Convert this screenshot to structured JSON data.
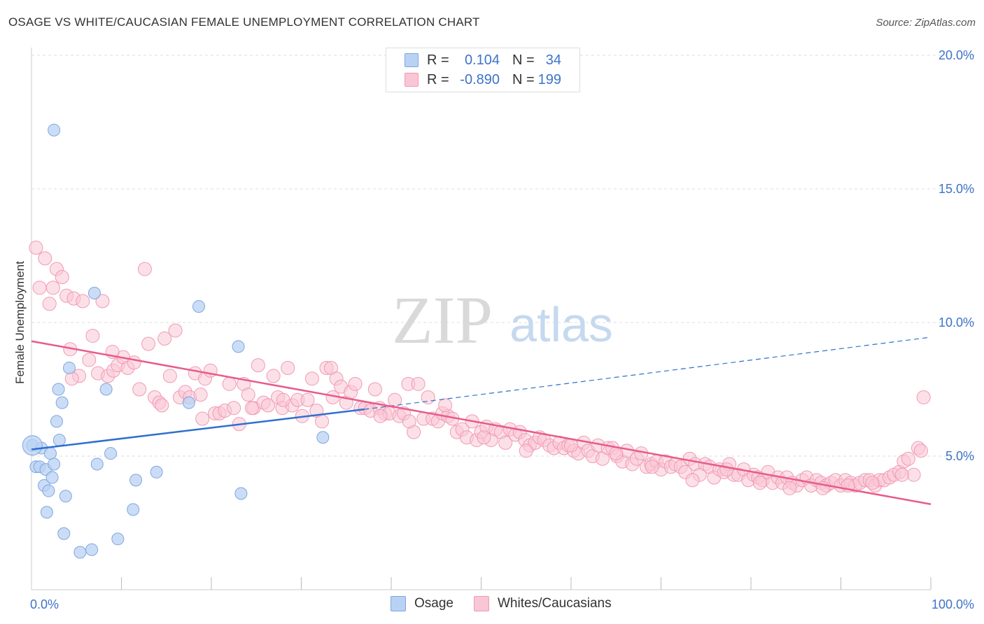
{
  "header": {
    "title": "OSAGE VS WHITE/CAUCASIAN FEMALE UNEMPLOYMENT CORRELATION CHART",
    "source": "Source: ZipAtlas.com"
  },
  "watermark": {
    "zip": "ZIP",
    "atlas": "atlas"
  },
  "legend_top": {
    "rows": [
      {
        "r_label": "R =",
        "r_value": "0.104",
        "n_label": "N =",
        "n_value": "34"
      },
      {
        "r_label": "R =",
        "r_value": "-0.890",
        "n_label": "N =",
        "n_value": "199"
      }
    ]
  },
  "legend_bottom": {
    "items": [
      "Osage",
      "Whites/Caucasians"
    ]
  },
  "colors": {
    "osage_fill": "#b9d2f3",
    "osage_stroke": "#7ea6e0",
    "osage_line": "#2f6fcf",
    "white_fill": "#f9c6d5",
    "white_stroke": "#f09ab5",
    "white_line": "#e85b8a",
    "grid": "#dddddd",
    "tick_label": "#3e73c8"
  },
  "chart_data": {
    "type": "scatter",
    "title": "OSAGE VS WHITE/CAUCASIAN FEMALE UNEMPLOYMENT CORRELATION CHART",
    "xlabel": "",
    "ylabel": "Female Unemployment",
    "xlim": [
      0,
      100
    ],
    "ylim": [
      0,
      20
    ],
    "x_tick_labels": [
      "0.0%",
      "100.0%"
    ],
    "y_ticks": [
      5,
      10,
      15,
      20
    ],
    "y_tick_labels": [
      "5.0%",
      "10.0%",
      "15.0%",
      "20.0%"
    ],
    "grid": true,
    "legend": "bottom",
    "series": [
      {
        "name": "Osage",
        "n": 34,
        "r": 0.104,
        "trend": {
          "x": [
            0,
            37,
            100
          ],
          "y": [
            5.25,
            6.75,
            9.45
          ],
          "solid_until": 37
        },
        "points": [
          [
            0.1,
            5.4
          ],
          [
            0.5,
            4.6
          ],
          [
            1.1,
            5.3
          ],
          [
            0.9,
            4.6
          ],
          [
            1.4,
            3.9
          ],
          [
            1.6,
            4.5
          ],
          [
            1.9,
            3.7
          ],
          [
            2.1,
            5.1
          ],
          [
            2.3,
            4.2
          ],
          [
            2.5,
            4.7
          ],
          [
            1.7,
            2.9
          ],
          [
            2.8,
            6.3
          ],
          [
            3.0,
            7.5
          ],
          [
            3.1,
            5.6
          ],
          [
            2.5,
            17.2
          ],
          [
            3.8,
            3.5
          ],
          [
            3.4,
            7.0
          ],
          [
            3.6,
            2.1
          ],
          [
            4.2,
            8.3
          ],
          [
            5.4,
            1.4
          ],
          [
            6.7,
            1.5
          ],
          [
            7.0,
            11.1
          ],
          [
            7.3,
            4.7
          ],
          [
            8.3,
            7.5
          ],
          [
            8.8,
            5.1
          ],
          [
            9.6,
            1.9
          ],
          [
            11.6,
            4.1
          ],
          [
            11.3,
            3.0
          ],
          [
            13.9,
            4.4
          ],
          [
            17.5,
            7.0
          ],
          [
            18.6,
            10.6
          ],
          [
            23.0,
            9.1
          ],
          [
            23.3,
            3.6
          ],
          [
            32.4,
            5.7
          ]
        ]
      },
      {
        "name": "Whites/Caucasians",
        "n": 199,
        "r": -0.89,
        "trend": {
          "x": [
            0,
            100
          ],
          "y": [
            9.3,
            3.2
          ]
        },
        "points": [
          [
            0.5,
            12.8
          ],
          [
            0.9,
            11.3
          ],
          [
            1.5,
            12.4
          ],
          [
            2.0,
            10.7
          ],
          [
            2.4,
            11.3
          ],
          [
            2.8,
            12.0
          ],
          [
            3.4,
            11.7
          ],
          [
            3.9,
            11.0
          ],
          [
            4.3,
            9.0
          ],
          [
            4.7,
            10.9
          ],
          [
            5.3,
            8.0
          ],
          [
            5.7,
            10.8
          ],
          [
            6.4,
            8.6
          ],
          [
            6.8,
            9.5
          ],
          [
            7.4,
            8.1
          ],
          [
            7.9,
            10.8
          ],
          [
            8.5,
            8.0
          ],
          [
            9.1,
            8.2
          ],
          [
            9.6,
            8.4
          ],
          [
            10.2,
            8.7
          ],
          [
            10.7,
            8.3
          ],
          [
            11.4,
            8.5
          ],
          [
            12.0,
            7.5
          ],
          [
            12.6,
            12.0
          ],
          [
            13.0,
            9.2
          ],
          [
            13.7,
            7.2
          ],
          [
            14.2,
            7.0
          ],
          [
            14.8,
            9.4
          ],
          [
            15.4,
            8.0
          ],
          [
            16.0,
            9.7
          ],
          [
            16.5,
            7.2
          ],
          [
            17.1,
            7.4
          ],
          [
            17.6,
            7.2
          ],
          [
            18.2,
            8.1
          ],
          [
            18.8,
            7.3
          ],
          [
            19.3,
            7.9
          ],
          [
            19.9,
            8.2
          ],
          [
            20.4,
            6.6
          ],
          [
            20.9,
            6.6
          ],
          [
            21.5,
            6.7
          ],
          [
            22.0,
            7.7
          ],
          [
            22.5,
            6.8
          ],
          [
            23.1,
            6.2
          ],
          [
            23.6,
            7.7
          ],
          [
            24.1,
            7.3
          ],
          [
            24.7,
            6.8
          ],
          [
            25.2,
            8.4
          ],
          [
            25.8,
            7.0
          ],
          [
            26.3,
            6.9
          ],
          [
            26.9,
            8.0
          ],
          [
            27.4,
            7.2
          ],
          [
            27.9,
            6.8
          ],
          [
            28.5,
            8.3
          ],
          [
            29.0,
            6.9
          ],
          [
            29.6,
            7.1
          ],
          [
            30.1,
            6.5
          ],
          [
            30.7,
            7.1
          ],
          [
            31.2,
            7.9
          ],
          [
            31.7,
            6.7
          ],
          [
            32.3,
            6.3
          ],
          [
            32.8,
            8.3
          ],
          [
            33.3,
            8.3
          ],
          [
            33.9,
            7.9
          ],
          [
            34.4,
            7.6
          ],
          [
            35.0,
            7.0
          ],
          [
            35.5,
            7.4
          ],
          [
            36.0,
            7.7
          ],
          [
            36.6,
            6.8
          ],
          [
            37.1,
            6.8
          ],
          [
            37.7,
            6.7
          ],
          [
            38.2,
            7.5
          ],
          [
            38.7,
            6.8
          ],
          [
            39.3,
            6.6
          ],
          [
            39.8,
            6.6
          ],
          [
            40.4,
            7.1
          ],
          [
            40.9,
            6.5
          ],
          [
            41.4,
            6.6
          ],
          [
            41.9,
            7.7
          ],
          [
            42.5,
            5.9
          ],
          [
            43.0,
            7.7
          ],
          [
            43.6,
            6.4
          ],
          [
            44.1,
            7.2
          ],
          [
            44.6,
            6.4
          ],
          [
            45.2,
            6.3
          ],
          [
            45.7,
            6.6
          ],
          [
            46.3,
            6.5
          ],
          [
            46.8,
            6.4
          ],
          [
            47.3,
            5.9
          ],
          [
            47.9,
            6.0
          ],
          [
            48.4,
            5.7
          ],
          [
            49.0,
            6.3
          ],
          [
            49.5,
            5.6
          ],
          [
            50.0,
            5.9
          ],
          [
            50.6,
            6.1
          ],
          [
            51.1,
            5.6
          ],
          [
            51.6,
            6.0
          ],
          [
            52.2,
            5.9
          ],
          [
            52.7,
            5.5
          ],
          [
            53.2,
            6.0
          ],
          [
            53.8,
            5.8
          ],
          [
            54.3,
            5.9
          ],
          [
            54.9,
            5.6
          ],
          [
            55.4,
            5.4
          ],
          [
            56.0,
            5.5
          ],
          [
            56.5,
            5.7
          ],
          [
            57.0,
            5.6
          ],
          [
            57.6,
            5.4
          ],
          [
            58.1,
            5.3
          ],
          [
            58.7,
            5.5
          ],
          [
            59.2,
            5.3
          ],
          [
            59.7,
            5.4
          ],
          [
            60.3,
            5.2
          ],
          [
            60.8,
            5.1
          ],
          [
            61.4,
            5.5
          ],
          [
            61.9,
            5.2
          ],
          [
            62.4,
            5.0
          ],
          [
            63.0,
            5.4
          ],
          [
            63.5,
            4.9
          ],
          [
            64.1,
            5.3
          ],
          [
            64.6,
            5.3
          ],
          [
            65.1,
            5.0
          ],
          [
            65.7,
            4.8
          ],
          [
            66.2,
            5.2
          ],
          [
            66.8,
            4.7
          ],
          [
            67.3,
            4.9
          ],
          [
            67.8,
            5.1
          ],
          [
            68.4,
            4.6
          ],
          [
            68.9,
            4.7
          ],
          [
            69.5,
            4.8
          ],
          [
            70.0,
            4.5
          ],
          [
            70.5,
            4.8
          ],
          [
            71.1,
            4.6
          ],
          [
            71.6,
            4.7
          ],
          [
            72.2,
            4.6
          ],
          [
            72.7,
            4.4
          ],
          [
            73.2,
            4.9
          ],
          [
            73.8,
            4.7
          ],
          [
            74.3,
            4.3
          ],
          [
            74.9,
            4.7
          ],
          [
            75.4,
            4.6
          ],
          [
            75.9,
            4.2
          ],
          [
            76.5,
            4.5
          ],
          [
            77.0,
            4.4
          ],
          [
            77.6,
            4.7
          ],
          [
            78.1,
            4.3
          ],
          [
            78.6,
            4.3
          ],
          [
            79.2,
            4.5
          ],
          [
            79.7,
            4.1
          ],
          [
            80.3,
            4.3
          ],
          [
            80.8,
            4.2
          ],
          [
            81.3,
            4.1
          ],
          [
            81.9,
            4.4
          ],
          [
            82.4,
            4.0
          ],
          [
            83.0,
            4.2
          ],
          [
            83.5,
            4.0
          ],
          [
            84.0,
            4.2
          ],
          [
            84.6,
            4.0
          ],
          [
            85.1,
            3.9
          ],
          [
            85.7,
            4.1
          ],
          [
            86.2,
            4.2
          ],
          [
            86.7,
            3.9
          ],
          [
            87.3,
            4.1
          ],
          [
            87.8,
            4.0
          ],
          [
            88.4,
            3.9
          ],
          [
            88.9,
            4.0
          ],
          [
            89.4,
            4.1
          ],
          [
            90.0,
            3.9
          ],
          [
            90.5,
            4.1
          ],
          [
            91.1,
            4.0
          ],
          [
            91.6,
            3.9
          ],
          [
            92.1,
            4.0
          ],
          [
            92.7,
            4.1
          ],
          [
            93.2,
            4.1
          ],
          [
            93.8,
            3.9
          ],
          [
            94.3,
            4.1
          ],
          [
            94.8,
            4.1
          ],
          [
            95.4,
            4.2
          ],
          [
            95.9,
            4.3
          ],
          [
            96.5,
            4.4
          ],
          [
            97.0,
            4.8
          ],
          [
            97.5,
            4.9
          ],
          [
            98.1,
            4.3
          ],
          [
            98.6,
            5.3
          ],
          [
            99.2,
            7.2
          ],
          [
            4.5,
            7.9
          ],
          [
            9.0,
            8.9
          ],
          [
            14.5,
            6.9
          ],
          [
            19.0,
            6.4
          ],
          [
            24.5,
            6.8
          ],
          [
            28.0,
            7.1
          ],
          [
            33.5,
            7.2
          ],
          [
            38.8,
            6.5
          ],
          [
            42.0,
            6.3
          ],
          [
            46.0,
            6.9
          ],
          [
            50.3,
            5.7
          ],
          [
            55.0,
            5.2
          ],
          [
            60.0,
            5.4
          ],
          [
            65.0,
            5.1
          ],
          [
            69.0,
            4.6
          ],
          [
            73.5,
            4.1
          ],
          [
            77.3,
            4.5
          ],
          [
            81.0,
            4.0
          ],
          [
            84.3,
            3.8
          ],
          [
            88.0,
            3.8
          ],
          [
            90.8,
            3.9
          ],
          [
            93.5,
            4.0
          ],
          [
            96.8,
            4.3
          ],
          [
            98.9,
            5.2
          ]
        ]
      }
    ]
  }
}
